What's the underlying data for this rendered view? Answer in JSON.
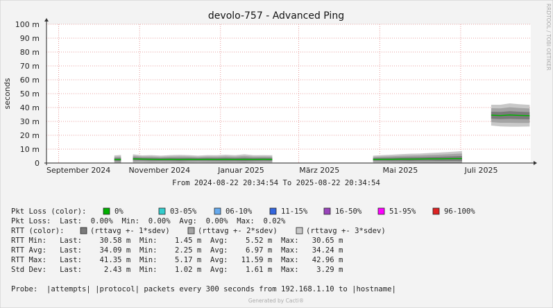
{
  "chart_data": {
    "type": "area",
    "title": "devolo-757 - Advanced Ping",
    "y_label": "seconds",
    "range_label": "From 2024-08-22 20:34:54 To 2025-08-22 20:34:54",
    "xlim": [
      "2024-08-22 20:34:54",
      "2025-08-22 20:34:54"
    ],
    "xticks": [
      {
        "value": "2024-09",
        "label": "September 2024"
      },
      {
        "value": "2024-11",
        "label": "November 2024"
      },
      {
        "value": "2025-01",
        "label": "Januar 2025"
      },
      {
        "value": "2025-03",
        "label": "März 2025"
      },
      {
        "value": "2025-05",
        "label": "Mai 2025"
      },
      {
        "value": "2025-07",
        "label": "Juli 2025"
      }
    ],
    "ylim": [
      0,
      0.1
    ],
    "yticks": [
      0,
      {
        "value": 0.01,
        "label": "10 m"
      },
      {
        "value": 0.02,
        "label": "20 m"
      },
      {
        "value": 0.03,
        "label": "30 m"
      },
      {
        "value": 0.04,
        "label": "40 m"
      },
      {
        "value": 0.05,
        "label": "50 m"
      },
      {
        "value": 0.06,
        "label": "60 m"
      },
      {
        "value": 0.07,
        "label": "70 m"
      },
      {
        "value": 0.08,
        "label": "80 m"
      },
      {
        "value": 0.09,
        "label": "90 m"
      },
      {
        "value": 0.1,
        "label": "100 m"
      }
    ],
    "grid": true,
    "x": [
      "2024-10-13",
      "2024-10-18",
      "2024-10-22",
      "2024-10-27",
      "2024-11-03",
      "2024-11-10",
      "2024-11-17",
      "2024-11-24",
      "2024-12-01",
      "2024-12-08",
      "2024-12-15",
      "2024-12-22",
      "2024-12-29",
      "2025-01-05",
      "2025-01-12",
      "2025-01-19",
      "2025-01-26",
      "2025-02-02",
      "2025-02-09",
      "2025-03-01",
      "2025-04-26",
      "2025-05-03",
      "2025-05-10",
      "2025-05-17",
      "2025-05-24",
      "2025-05-31",
      "2025-06-07",
      "2025-06-14",
      "2025-06-21",
      "2025-06-28",
      "2025-07-02",
      "2025-07-18",
      "2025-07-24",
      "2025-07-31",
      "2025-08-07",
      "2025-08-14",
      "2025-08-22"
    ],
    "rtt_avg": [
      0.0025,
      0.0025,
      null,
      0.003,
      0.0028,
      0.0027,
      0.0026,
      0.0027,
      0.0026,
      0.0027,
      0.0026,
      0.0027,
      0.0026,
      0.0027,
      0.0026,
      0.0027,
      0.0026,
      0.0027,
      0.0026,
      null,
      0.0026,
      0.0027,
      0.0027,
      0.0028,
      0.0028,
      0.0029,
      0.003,
      0.003,
      0.0031,
      0.0032,
      0.0032,
      null,
      0.0345,
      0.0342,
      0.0346,
      0.0343,
      0.0341
    ],
    "rtt_sdev": [
      0.001,
      0.0011,
      null,
      0.0011,
      0.0009,
      0.001,
      0.0009,
      0.001,
      0.0011,
      0.001,
      0.0009,
      0.001,
      0.001,
      0.0011,
      0.001,
      0.0012,
      0.001,
      0.001,
      0.001,
      null,
      0.0009,
      0.001,
      0.0011,
      0.0012,
      0.0013,
      0.0013,
      0.0014,
      0.0015,
      0.0016,
      0.0017,
      0.0018,
      null,
      0.0025,
      0.0026,
      0.0028,
      0.0027,
      0.0026
    ]
  },
  "legend": {
    "loss_label": "Pkt Loss (color):",
    "loss_items": [
      {
        "label": "0%",
        "color": "#00b000"
      },
      {
        "label": "03-05%",
        "color": "#33cccc"
      },
      {
        "label": "06-10%",
        "color": "#66aaee"
      },
      {
        "label": "11-15%",
        "color": "#3366dd"
      },
      {
        "label": "16-50%",
        "color": "#9944bb"
      },
      {
        "label": "51-95%",
        "color": "#ff00ff"
      },
      {
        "label": "96-100%",
        "color": "#dd2222"
      }
    ],
    "loss_stats": "Pkt Loss:  Last:  0.00%  Min:  0.00%  Avg:  0.00%  Max:  0.02%",
    "rtt_label": "RTT (color):",
    "rtt_items": [
      {
        "label": "(rttavg +- 1*sdev)",
        "color": "#7a7a7a"
      },
      {
        "label": "(rttavg +- 2*sdev)",
        "color": "#a4a4a4"
      },
      {
        "label": "(rttavg +- 3*sdev)",
        "color": "#c8c8c8"
      }
    ],
    "stats": [
      "RTT Min:   Last:    30.58 m  Min:    1.45 m  Avg:    5.52 m  Max:   30.65 m",
      "RTT Avg:   Last:    34.09 m  Min:    2.25 m  Avg:    6.97 m  Max:   34.24 m",
      "RTT Max:   Last:    41.35 m  Min:    5.17 m  Avg:   11.59 m  Max:   42.96 m",
      "Std Dev:   Last:     2.43 m  Min:    1.02 m  Avg:    1.61 m  Max:    3.29 m"
    ],
    "probe": "Probe:  |attempts| |protocol| packets every 300 seconds from 192.168.1.10 to |hostname|"
  },
  "footer": "Generated by Cacti®",
  "watermark": "RRDTOOL / TOBI OETIKER"
}
